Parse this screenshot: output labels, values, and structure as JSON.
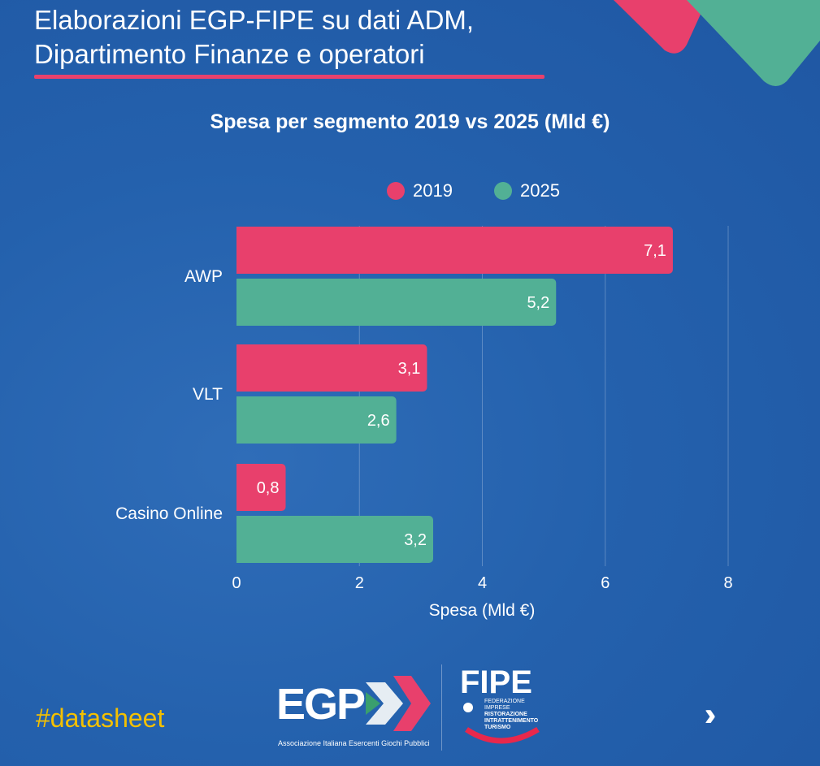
{
  "header": {
    "title_line1": "Elaborazioni EGP-FIPE su dati ADM,",
    "title_line2": "Dipartimento Finanze e operatori"
  },
  "colors": {
    "2019": "#e8406c",
    "2025": "#52b095",
    "background": "#2461ad",
    "hashtag": "#f4c000"
  },
  "chart_data": {
    "type": "bar",
    "orientation": "horizontal",
    "title": "Spesa per segmento 2019 vs 2025 (Mld €)",
    "xlabel": "Spesa (Mld €)",
    "ylabel": "",
    "categories": [
      "AWP",
      "VLT",
      "Casino Online"
    ],
    "series": [
      {
        "name": "2019",
        "values": [
          7.1,
          3.1,
          0.8
        ],
        "labels": [
          "7,1",
          "3,1",
          "0,8"
        ]
      },
      {
        "name": "2025",
        "values": [
          5.2,
          2.6,
          3.2
        ],
        "labels": [
          "5,2",
          "2,6",
          "3,2"
        ]
      }
    ],
    "xlim": [
      0,
      8
    ],
    "xticks": [
      "0",
      "2",
      "4",
      "6",
      "8"
    ],
    "grid": true,
    "legend_position": "top"
  },
  "footer": {
    "hashtag": "#datasheet",
    "egp_logo": "EGP",
    "egp_caption": "Associazione Italiana  Esercenti Giochi Pubblici",
    "fipe_logo": "FIPE",
    "fipe_caption": [
      "FEDERAZIONE IMPRESE",
      "RISTORAZIONE",
      "INTRATTENIMENTO",
      "TURISMO"
    ],
    "next_icon": "chevrons-right-icon"
  }
}
